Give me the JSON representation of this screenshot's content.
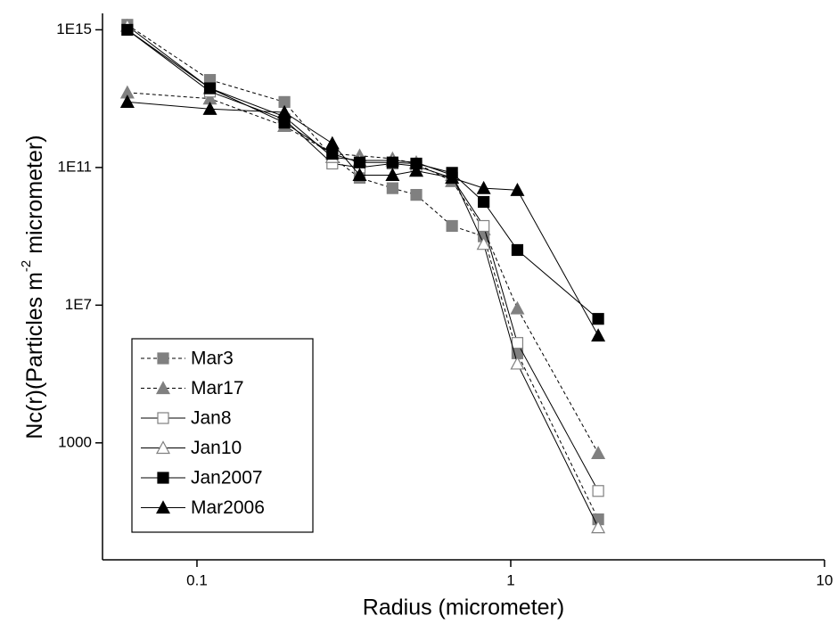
{
  "chart_data": {
    "type": "line",
    "xlabel": "Radius (micrometer)",
    "ylabel": [
      "Nc(r)(Particles m",
      "-2",
      " micrometer)"
    ],
    "xscale": "log",
    "yscale": "log",
    "xlim": [
      0.05,
      10
    ],
    "ylim": [
      0.4,
      3000000000000000.0
    ],
    "xticks": [
      0.1,
      1,
      10
    ],
    "yticks": [
      1000,
      {
        "value": 10000000.0,
        "label": "1E7"
      },
      {
        "value": 100000000000.0,
        "label": "1E11"
      },
      {
        "value": 1000000000000000.0,
        "label": "1E15"
      }
    ],
    "legend": "lower left",
    "x": [
      0.06,
      0.11,
      0.19,
      0.27,
      0.33,
      0.42,
      0.5,
      0.65,
      0.82,
      1.05,
      1.9
    ],
    "series": [
      {
        "name": "Mar3",
        "color": "#808080",
        "marker": "square",
        "filled": true,
        "dashed": true,
        "values": [
          1400000000000000.0,
          35000000000000.0,
          8000000000000.0,
          200000000000.0,
          50000000000.0,
          25000000000.0,
          16000000000.0,
          2000000000.0,
          1000000000.0,
          400000.0,
          6
        ]
      },
      {
        "name": "Mar17",
        "color": "#808080",
        "marker": "triangle",
        "filled": true,
        "dashed": true,
        "values": [
          15000000000000.0,
          10000000000000.0,
          1600000000000.0,
          250000000000.0,
          220000000000.0,
          180000000000.0,
          130000000000.0,
          40000000000.0,
          1600000000.0,
          8000000.0,
          500
        ]
      },
      {
        "name": "Jan8",
        "color": "#808080",
        "marker": "square",
        "filled": false,
        "dashed": false,
        "values": [
          1000000000000000.0,
          16000000000000.0,
          2500000000000.0,
          130000000000.0,
          100000000000.0,
          130000000000.0,
          110000000000.0,
          50000000000.0,
          2000000000.0,
          800000.0,
          40
        ]
      },
      {
        "name": "Jan10",
        "color": "#808080",
        "marker": "triangle",
        "filled": false,
        "dashed": false,
        "values": [
          1300000000000000.0,
          20000000000000.0,
          3000000000000.0,
          200000000000.0,
          160000000000.0,
          160000000000.0,
          140000000000.0,
          60000000000.0,
          600000000.0,
          200000.0,
          3.5
        ]
      },
      {
        "name": "Jan2007",
        "color": "#000000",
        "marker": "square",
        "filled": true,
        "dashed": false,
        "values": [
          1000000000000000.0,
          20000000000000.0,
          2000000000000.0,
          250000000000.0,
          140000000000.0,
          140000000000.0,
          130000000000.0,
          70000000000.0,
          10000000000.0,
          400000000.0,
          4000000.0
        ]
      },
      {
        "name": "Mar2006",
        "color": "#000000",
        "marker": "triangle",
        "filled": true,
        "dashed": false,
        "values": [
          8000000000000.0,
          5000000000000.0,
          4000000000000.0,
          500000000000.0,
          60000000000.0,
          60000000000.0,
          80000000000.0,
          50000000000.0,
          25000000000.0,
          22000000000.0,
          1300000.0
        ]
      }
    ]
  }
}
